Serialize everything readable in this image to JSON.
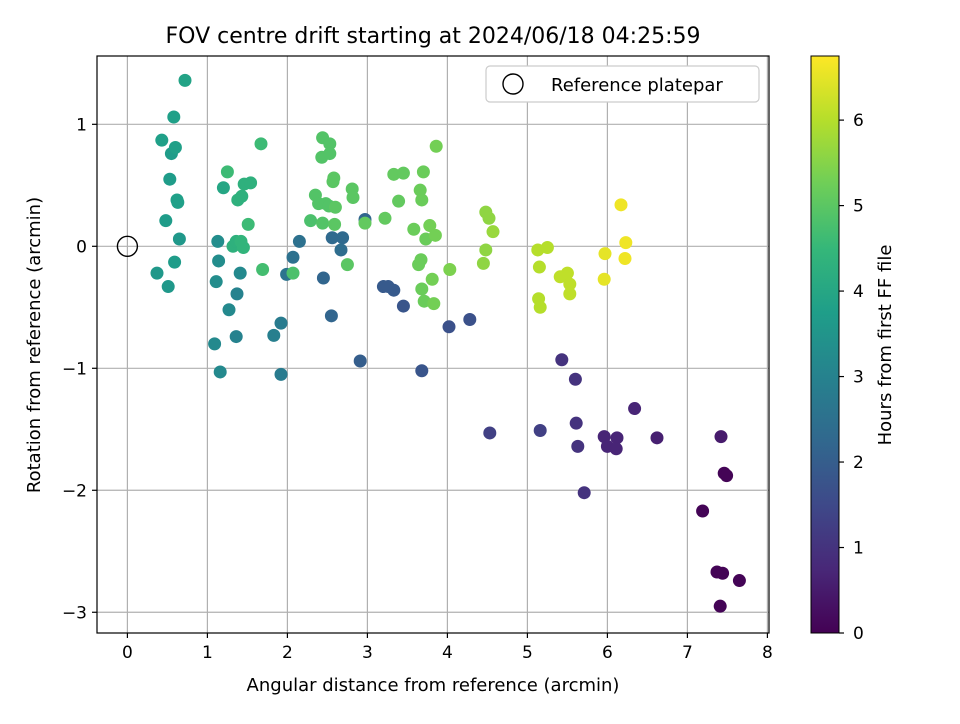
{
  "chart_data": {
    "type": "scatter",
    "title": "FOV centre drift starting at 2024/06/18 04:25:59",
    "xlabel": "Angular distance from reference (arcmin)",
    "ylabel": "Rotation from reference (arcmin)",
    "xlim": [
      -0.38,
      8.02
    ],
    "ylim": [
      -3.17,
      1.56
    ],
    "xticks": [
      0,
      1,
      2,
      3,
      4,
      5,
      6,
      7,
      8
    ],
    "yticks": [
      -3,
      -2,
      -1,
      0,
      1
    ],
    "xtick_labels": [
      "0",
      "1",
      "2",
      "3",
      "4",
      "5",
      "6",
      "7",
      "8"
    ],
    "ytick_labels": [
      "−3",
      "−2",
      "−1",
      "0",
      "1"
    ],
    "grid": true,
    "legend": {
      "position": "top-right",
      "label": "Reference platepar",
      "marker": "open-circle"
    },
    "reference_point": {
      "x": 0,
      "y": 0
    },
    "colorbar": {
      "label": "Hours from first FF file",
      "colormap": "viridis",
      "range": [
        0,
        6.75
      ],
      "ticks": [
        0,
        1,
        2,
        3,
        4,
        5,
        6
      ],
      "tick_labels": [
        "0",
        "1",
        "2",
        "3",
        "4",
        "5",
        "6"
      ]
    },
    "points": [
      {
        "x": 7.41,
        "y": -2.95,
        "h": 0.05
      },
      {
        "x": 7.37,
        "y": -2.67,
        "h": 0.05
      },
      {
        "x": 7.44,
        "y": -2.68,
        "h": 0.05
      },
      {
        "x": 7.65,
        "y": -2.74,
        "h": 0.05
      },
      {
        "x": 7.19,
        "y": -2.17,
        "h": 0.05
      },
      {
        "x": 7.46,
        "y": -1.86,
        "h": 0.05
      },
      {
        "x": 7.49,
        "y": -1.88,
        "h": 0.05
      },
      {
        "x": 7.42,
        "y": -1.56,
        "h": 0.5
      },
      {
        "x": 6.62,
        "y": -1.57,
        "h": 0.6
      },
      {
        "x": 6.34,
        "y": -1.33,
        "h": 0.7
      },
      {
        "x": 6.12,
        "y": -1.57,
        "h": 0.7
      },
      {
        "x": 5.96,
        "y": -1.56,
        "h": 0.7
      },
      {
        "x": 6.0,
        "y": -1.64,
        "h": 0.7
      },
      {
        "x": 6.11,
        "y": -1.66,
        "h": 0.7
      },
      {
        "x": 5.61,
        "y": -1.45,
        "h": 1.0
      },
      {
        "x": 5.63,
        "y": -1.64,
        "h": 1.0
      },
      {
        "x": 5.71,
        "y": -2.02,
        "h": 1.0
      },
      {
        "x": 5.6,
        "y": -1.09,
        "h": 1.0
      },
      {
        "x": 5.43,
        "y": -0.93,
        "h": 1.0
      },
      {
        "x": 5.16,
        "y": -1.51,
        "h": 1.3
      },
      {
        "x": 4.53,
        "y": -1.53,
        "h": 1.3
      },
      {
        "x": 4.28,
        "y": -0.6,
        "h": 1.7
      },
      {
        "x": 4.02,
        "y": -0.66,
        "h": 1.7
      },
      {
        "x": 3.68,
        "y": -1.02,
        "h": 1.8
      },
      {
        "x": 3.45,
        "y": -0.49,
        "h": 1.8
      },
      {
        "x": 3.33,
        "y": -0.36,
        "h": 1.9
      },
      {
        "x": 3.2,
        "y": -0.33,
        "h": 1.9
      },
      {
        "x": 3.26,
        "y": -0.33,
        "h": 1.9
      },
      {
        "x": 2.91,
        "y": -0.94,
        "h": 2.0
      },
      {
        "x": 2.55,
        "y": -0.57,
        "h": 2.2
      },
      {
        "x": 2.97,
        "y": 0.22,
        "h": 2.2
      },
      {
        "x": 2.45,
        "y": -0.26,
        "h": 2.2
      },
      {
        "x": 2.56,
        "y": 0.07,
        "h": 2.3
      },
      {
        "x": 2.69,
        "y": 0.07,
        "h": 2.3
      },
      {
        "x": 2.67,
        "y": -0.03,
        "h": 2.4
      },
      {
        "x": 2.15,
        "y": 0.04,
        "h": 2.5
      },
      {
        "x": 2.07,
        "y": -0.09,
        "h": 2.5
      },
      {
        "x": 1.99,
        "y": -0.23,
        "h": 2.6
      },
      {
        "x": 1.92,
        "y": -1.05,
        "h": 2.8
      },
      {
        "x": 1.92,
        "y": -0.63,
        "h": 2.8
      },
      {
        "x": 1.83,
        "y": -0.73,
        "h": 2.9
      },
      {
        "x": 1.36,
        "y": -0.74,
        "h": 3.0
      },
      {
        "x": 1.37,
        "y": -0.39,
        "h": 3.0
      },
      {
        "x": 1.27,
        "y": -0.52,
        "h": 3.2
      },
      {
        "x": 1.41,
        "y": -0.22,
        "h": 3.2
      },
      {
        "x": 1.09,
        "y": -0.8,
        "h": 3.2
      },
      {
        "x": 1.16,
        "y": -1.03,
        "h": 3.2
      },
      {
        "x": 1.11,
        "y": -0.29,
        "h": 3.3
      },
      {
        "x": 1.14,
        "y": -0.12,
        "h": 3.3
      },
      {
        "x": 1.13,
        "y": 0.04,
        "h": 3.3
      },
      {
        "x": 0.37,
        "y": -0.22,
        "h": 3.6
      },
      {
        "x": 0.51,
        "y": -0.33,
        "h": 3.6
      },
      {
        "x": 0.59,
        "y": -0.13,
        "h": 3.7
      },
      {
        "x": 0.65,
        "y": 0.06,
        "h": 3.6
      },
      {
        "x": 0.48,
        "y": 0.21,
        "h": 3.7
      },
      {
        "x": 0.63,
        "y": 0.36,
        "h": 3.8
      },
      {
        "x": 0.62,
        "y": 0.38,
        "h": 3.8
      },
      {
        "x": 0.53,
        "y": 0.55,
        "h": 3.7
      },
      {
        "x": 0.55,
        "y": 0.76,
        "h": 3.7
      },
      {
        "x": 0.6,
        "y": 0.81,
        "h": 3.8
      },
      {
        "x": 0.43,
        "y": 0.87,
        "h": 3.8
      },
      {
        "x": 0.58,
        "y": 1.06,
        "h": 3.8
      },
      {
        "x": 0.72,
        "y": 1.36,
        "h": 3.9
      },
      {
        "x": 1.2,
        "y": 0.48,
        "h": 4.0
      },
      {
        "x": 1.46,
        "y": 0.51,
        "h": 4.3
      },
      {
        "x": 1.54,
        "y": 0.52,
        "h": 4.3
      },
      {
        "x": 1.38,
        "y": 0.38,
        "h": 4.3
      },
      {
        "x": 1.43,
        "y": 0.41,
        "h": 4.3
      },
      {
        "x": 1.32,
        "y": 0.0,
        "h": 4.3
      },
      {
        "x": 1.36,
        "y": 0.04,
        "h": 4.3
      },
      {
        "x": 1.42,
        "y": 0.04,
        "h": 4.4
      },
      {
        "x": 1.45,
        "y": -0.01,
        "h": 4.4
      },
      {
        "x": 1.51,
        "y": 0.18,
        "h": 4.6
      },
      {
        "x": 1.25,
        "y": 0.61,
        "h": 4.6
      },
      {
        "x": 1.67,
        "y": 0.84,
        "h": 4.6
      },
      {
        "x": 1.69,
        "y": -0.19,
        "h": 4.7
      },
      {
        "x": 2.07,
        "y": -0.22,
        "h": 4.8
      },
      {
        "x": 2.29,
        "y": 0.21,
        "h": 4.8
      },
      {
        "x": 2.35,
        "y": 0.42,
        "h": 4.9
      },
      {
        "x": 2.39,
        "y": 0.35,
        "h": 4.9
      },
      {
        "x": 2.43,
        "y": 0.73,
        "h": 4.9
      },
      {
        "x": 2.44,
        "y": 0.89,
        "h": 4.9
      },
      {
        "x": 2.53,
        "y": 0.84,
        "h": 4.9
      },
      {
        "x": 2.53,
        "y": 0.76,
        "h": 4.9
      },
      {
        "x": 2.48,
        "y": 0.35,
        "h": 4.9
      },
      {
        "x": 2.52,
        "y": 0.33,
        "h": 4.9
      },
      {
        "x": 2.44,
        "y": 0.19,
        "h": 4.9
      },
      {
        "x": 2.58,
        "y": 0.56,
        "h": 5.0
      },
      {
        "x": 2.57,
        "y": 0.53,
        "h": 5.0
      },
      {
        "x": 2.6,
        "y": 0.32,
        "h": 5.0
      },
      {
        "x": 2.59,
        "y": 0.18,
        "h": 5.0
      },
      {
        "x": 2.75,
        "y": -0.15,
        "h": 5.0
      },
      {
        "x": 2.81,
        "y": 0.47,
        "h": 5.0
      },
      {
        "x": 2.82,
        "y": 0.4,
        "h": 5.0
      },
      {
        "x": 2.97,
        "y": 0.19,
        "h": 5.1
      },
      {
        "x": 3.22,
        "y": 0.23,
        "h": 5.1
      },
      {
        "x": 3.33,
        "y": 0.59,
        "h": 5.1
      },
      {
        "x": 3.39,
        "y": 0.37,
        "h": 5.1
      },
      {
        "x": 3.45,
        "y": 0.6,
        "h": 5.1
      },
      {
        "x": 3.58,
        "y": 0.14,
        "h": 5.2
      },
      {
        "x": 3.64,
        "y": -0.15,
        "h": 5.2
      },
      {
        "x": 3.67,
        "y": -0.11,
        "h": 5.2
      },
      {
        "x": 3.66,
        "y": 0.46,
        "h": 5.2
      },
      {
        "x": 3.68,
        "y": 0.38,
        "h": 5.2
      },
      {
        "x": 3.7,
        "y": 0.61,
        "h": 5.2
      },
      {
        "x": 3.68,
        "y": -0.35,
        "h": 5.2
      },
      {
        "x": 3.71,
        "y": -0.45,
        "h": 5.2
      },
      {
        "x": 3.73,
        "y": 0.06,
        "h": 5.2
      },
      {
        "x": 3.78,
        "y": 0.17,
        "h": 5.3
      },
      {
        "x": 3.81,
        "y": -0.27,
        "h": 5.3
      },
      {
        "x": 3.83,
        "y": -0.47,
        "h": 5.3
      },
      {
        "x": 3.85,
        "y": 0.09,
        "h": 5.3
      },
      {
        "x": 3.86,
        "y": 0.82,
        "h": 5.3
      },
      {
        "x": 4.03,
        "y": -0.19,
        "h": 5.4
      },
      {
        "x": 4.45,
        "y": -0.14,
        "h": 5.6
      },
      {
        "x": 4.48,
        "y": -0.03,
        "h": 5.6
      },
      {
        "x": 4.48,
        "y": 0.28,
        "h": 5.6
      },
      {
        "x": 4.52,
        "y": 0.23,
        "h": 5.6
      },
      {
        "x": 4.57,
        "y": 0.12,
        "h": 5.7
      },
      {
        "x": 5.13,
        "y": -0.03,
        "h": 6.0
      },
      {
        "x": 5.15,
        "y": -0.17,
        "h": 6.0
      },
      {
        "x": 5.14,
        "y": -0.43,
        "h": 6.0
      },
      {
        "x": 5.16,
        "y": -0.5,
        "h": 6.0
      },
      {
        "x": 5.25,
        "y": -0.01,
        "h": 6.0
      },
      {
        "x": 5.41,
        "y": -0.25,
        "h": 6.1
      },
      {
        "x": 5.5,
        "y": -0.22,
        "h": 6.1
      },
      {
        "x": 5.53,
        "y": -0.31,
        "h": 6.1
      },
      {
        "x": 5.53,
        "y": -0.39,
        "h": 6.1
      },
      {
        "x": 5.97,
        "y": -0.06,
        "h": 6.5
      },
      {
        "x": 5.96,
        "y": -0.27,
        "h": 6.5
      },
      {
        "x": 6.17,
        "y": 0.34,
        "h": 6.6
      },
      {
        "x": 6.23,
        "y": 0.03,
        "h": 6.6
      },
      {
        "x": 6.22,
        "y": -0.1,
        "h": 6.6
      }
    ]
  }
}
